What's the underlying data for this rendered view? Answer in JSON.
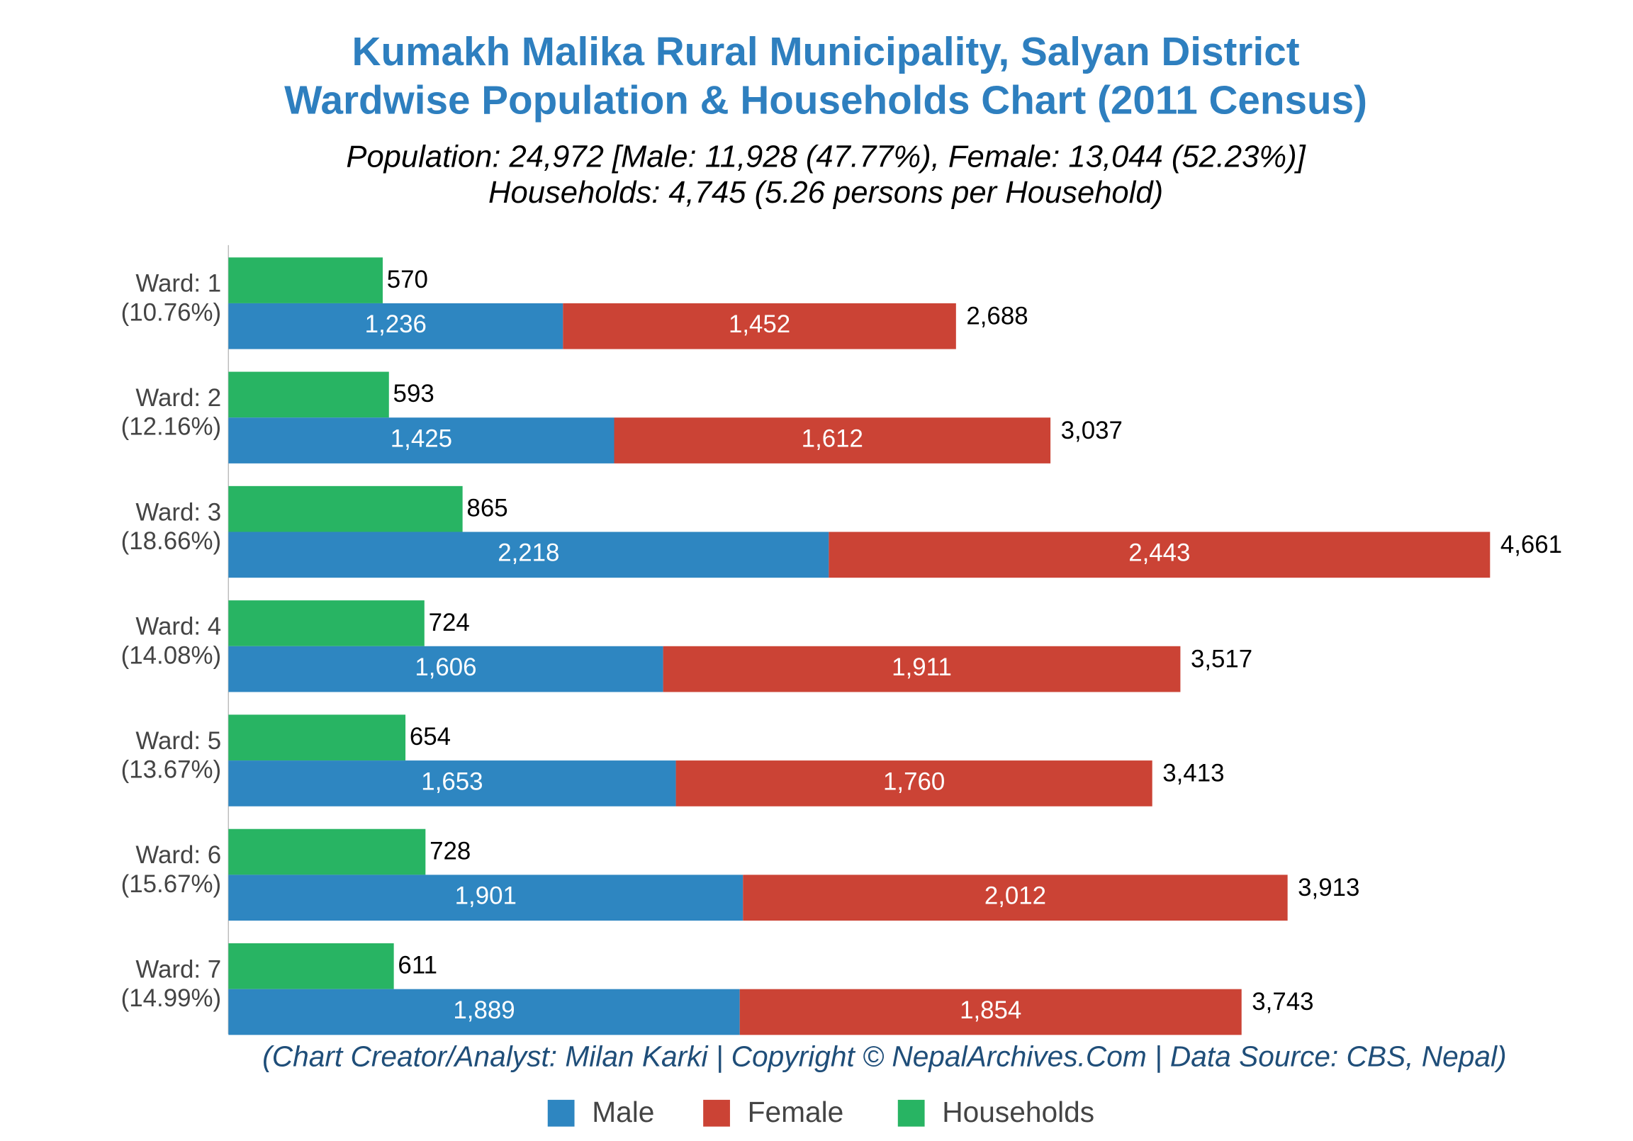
{
  "chart_data": {
    "type": "bar",
    "orientation": "horizontal",
    "title": "Kumakh Malika Rural Municipality, Salyan District",
    "title_line2": "Wardwise Population & Households Chart (2011 Census)",
    "subtitle": "Population: 24,972 [Male: 11,928 (47.77%), Female: 13,044 (52.23%)]",
    "subtitle_line2": "Households: 4,745 (5.26 persons per Household)",
    "credit": "(Chart Creator/Analyst: Milan Karki | Copyright © NepalArchives.Com | Data Source: CBS, Nepal)",
    "categories": [
      "Ward: 1",
      "Ward: 2",
      "Ward: 3",
      "Ward: 4",
      "Ward: 5",
      "Ward: 6",
      "Ward: 7"
    ],
    "category_shares": [
      "(10.76%)",
      "(12.16%)",
      "(18.66%)",
      "(14.08%)",
      "(13.67%)",
      "(15.67%)",
      "(14.99%)"
    ],
    "series": [
      {
        "name": "Male",
        "color": "#2e86c1",
        "stack": "population",
        "values": [
          1236,
          1425,
          2218,
          1606,
          1653,
          1901,
          1889
        ],
        "value_labels": [
          "1,236",
          "1,425",
          "2,218",
          "1,606",
          "1,653",
          "1,901",
          "1,889"
        ]
      },
      {
        "name": "Female",
        "color": "#cb4335",
        "stack": "population",
        "values": [
          1452,
          1612,
          2443,
          1911,
          1760,
          2012,
          1854
        ],
        "value_labels": [
          "1,452",
          "1,612",
          "2,443",
          "1,911",
          "1,760",
          "2,012",
          "1,854"
        ]
      },
      {
        "name": "Households",
        "color": "#28b463",
        "stack": "households",
        "values": [
          570,
          593,
          865,
          724,
          654,
          728,
          611
        ]
      }
    ],
    "total_labels": [
      "2,688",
      "3,037",
      "4,661",
      "3,517",
      "3,413",
      "3,913",
      "3,743"
    ]
  }
}
